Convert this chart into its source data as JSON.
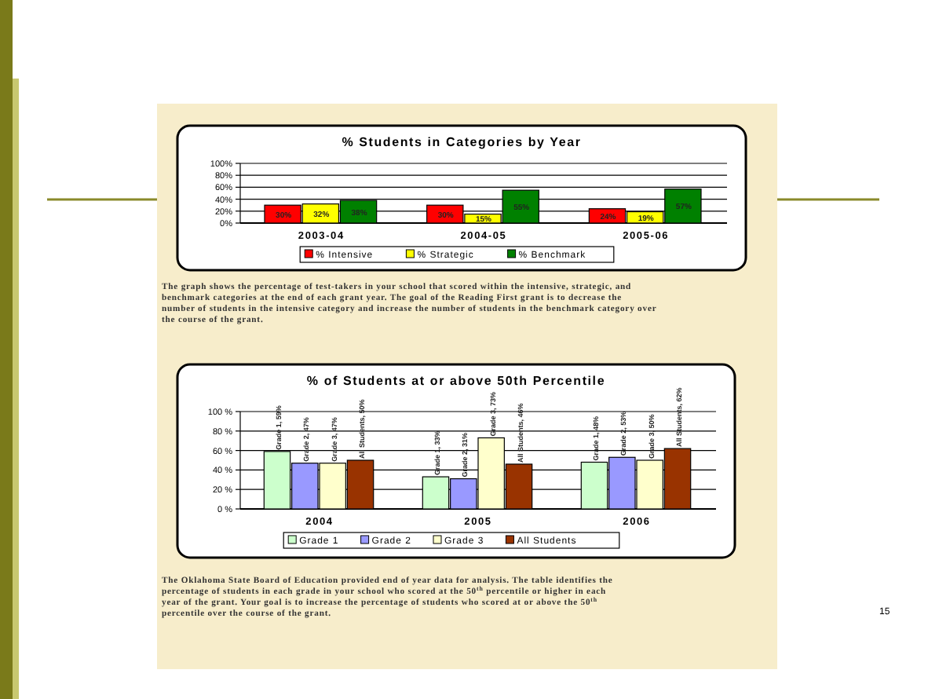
{
  "chart_data": [
    {
      "type": "bar",
      "title": "% Students in Categories by Year",
      "categories": [
        "2003-04",
        "2004-05",
        "2005-06"
      ],
      "series": [
        {
          "name": "% Intensive",
          "color": "#ff0000",
          "values": [
            30,
            30,
            24
          ],
          "value_labels": [
            "30%",
            "30%",
            "24%"
          ]
        },
        {
          "name": "% Strategic",
          "color": "#ffff00",
          "values": [
            32,
            15,
            19
          ],
          "value_labels": [
            "32%",
            "15%",
            "19%"
          ]
        },
        {
          "name": "% Benchmark",
          "color": "#008000",
          "values": [
            38,
            55,
            57
          ],
          "value_labels": [
            "38%",
            "55%",
            "57%"
          ]
        }
      ],
      "ylim": [
        0,
        100
      ],
      "yticks": [
        {
          "value": 0,
          "label": "0%"
        },
        {
          "value": 20,
          "label": "20%"
        },
        {
          "value": 40,
          "label": "40%"
        },
        {
          "value": 60,
          "label": "60%"
        },
        {
          "value": 80,
          "label": "80%"
        },
        {
          "value": 100,
          "label": "100%"
        }
      ],
      "grid": "y",
      "legend": "bottom",
      "annotations": [
        "The graph shows the percentage of test-takers in your school that scored within the intensive, strategic, and benchmark categories at the end of each grant year. The goal of the Reading First grant is to decrease the number of students in the intensive category and increase the number of students in the benchmark category over the course of the grant."
      ]
    },
    {
      "type": "bar",
      "title": "% of Students at or above 50th Percentile",
      "categories": [
        "2004",
        "2005",
        "2006"
      ],
      "series": [
        {
          "name": "Grade 1",
          "color": "#ccffcc",
          "values": [
            59,
            33,
            48
          ],
          "value_labels": [
            "Grade 1, 59%",
            "Grade 1, 33%",
            "Grade 1, 48%"
          ]
        },
        {
          "name": "Grade 2",
          "color": "#9999ff",
          "values": [
            47,
            31,
            53
          ],
          "value_labels": [
            "Grade 2, 47%",
            "Grade 2, 31%",
            "Grade 2, 53%"
          ]
        },
        {
          "name": "Grade 3",
          "color": "#ffffcc",
          "values": [
            47,
            73,
            50
          ],
          "value_labels": [
            "Grade 3, 47%",
            "Grade 3, 73%",
            "Grade 3, 50%"
          ]
        },
        {
          "name": "All Students",
          "color": "#993300",
          "values": [
            50,
            46,
            62
          ],
          "value_labels": [
            "All Students, 50%",
            "All Students, 46%",
            "All Students, 62%"
          ]
        }
      ],
      "ylim": [
        0,
        100
      ],
      "yticks": [
        {
          "value": 0,
          "label": "0 %"
        },
        {
          "value": 20,
          "label": "20 %"
        },
        {
          "value": 40,
          "label": "40 %"
        },
        {
          "value": 60,
          "label": "60 %"
        },
        {
          "value": 80,
          "label": "80 %"
        },
        {
          "value": 100,
          "label": "100 %"
        }
      ],
      "grid": "y",
      "legend": "bottom",
      "annotations": [
        "The Oklahoma State Board of Education provided end of year data for analysis. The table identifies the percentage of students in each grade in your school who scored at the 50$^{th}$ percentile or higher in each year of the grant. Your goal is to increase the percentage of students who scored at or above the 50$^{th}$ percentile over the course of the grant.",
        "15"
      ]
    }
  ]
}
